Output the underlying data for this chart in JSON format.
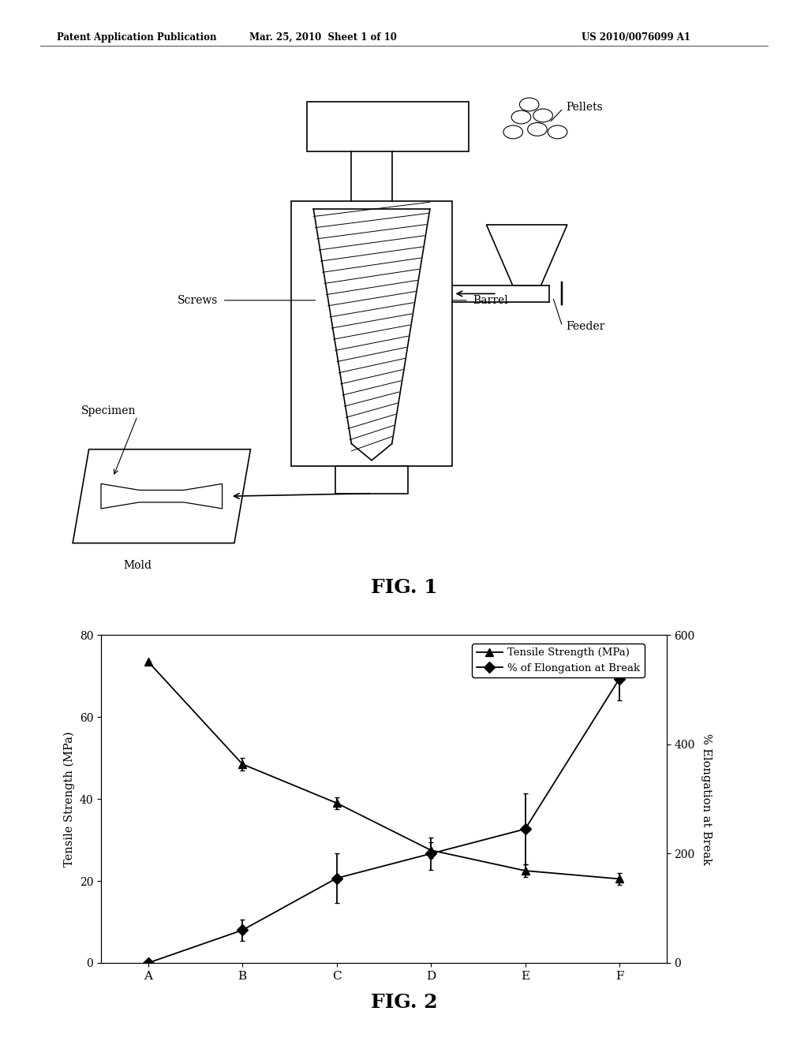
{
  "header_left": "Patent Application Publication",
  "header_center": "Mar. 25, 2010  Sheet 1 of 10",
  "header_right": "US 2010/0076099 A1",
  "fig1_label": "FIG. 1",
  "fig2_label": "FIG. 2",
  "categories": [
    "A",
    "B",
    "C",
    "D",
    "E",
    "F"
  ],
  "tensile_strength": [
    73.5,
    48.5,
    39.0,
    27.5,
    22.5,
    20.5
  ],
  "tensile_errors": [
    0.0,
    1.5,
    1.5,
    2.0,
    1.5,
    1.5
  ],
  "elongation": [
    0.0,
    60.0,
    155.0,
    200.0,
    245.0,
    520.0
  ],
  "elongation_errors": [
    0.0,
    20.0,
    45.0,
    30.0,
    65.0,
    40.0
  ],
  "left_ylim": [
    0,
    80
  ],
  "right_ylim": [
    0,
    600
  ],
  "left_yticks": [
    0,
    20,
    40,
    60,
    80
  ],
  "right_yticks": [
    0,
    200,
    400,
    600
  ],
  "left_ylabel": "Tensile Strength (MPa)",
  "right_ylabel": "% Elongation at Break",
  "legend_tensile": "Tensile Strength (MPa)",
  "legend_elongation": "% of Elongation at Break",
  "background_color": "#ffffff",
  "line_color": "#000000"
}
